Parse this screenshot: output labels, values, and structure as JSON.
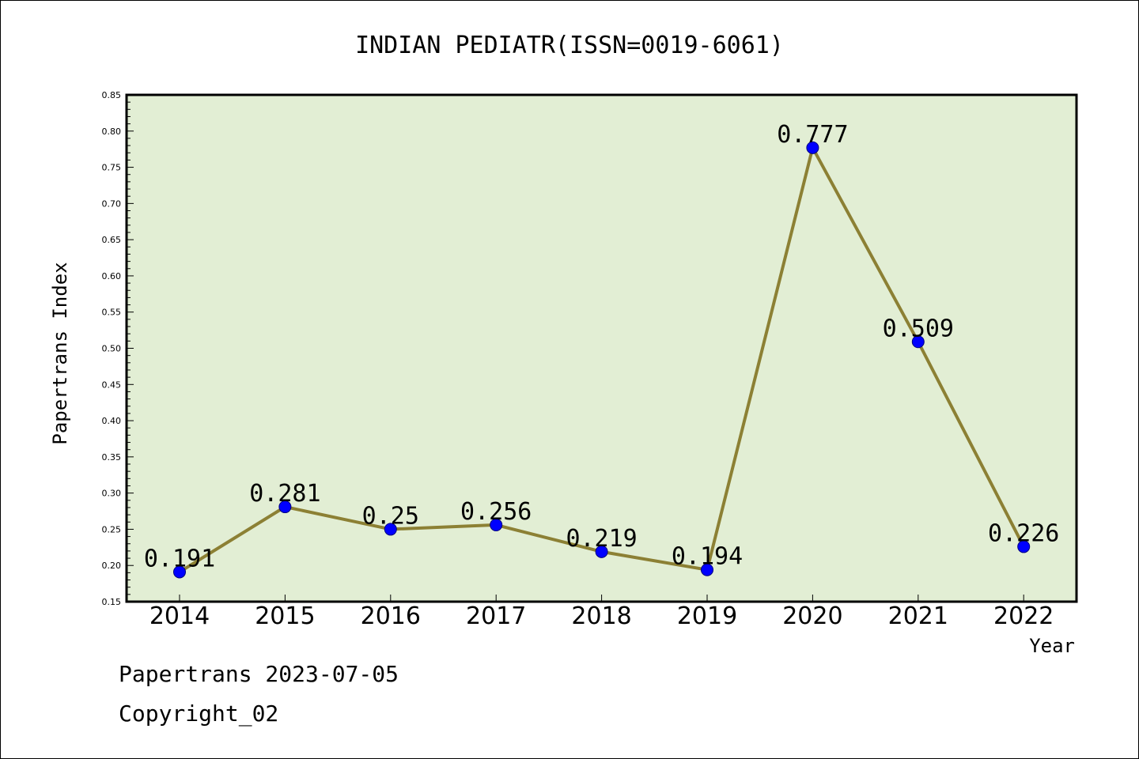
{
  "chart_data": {
    "type": "line",
    "title": "INDIAN PEDIATR(ISSN=0019-6061)",
    "xlabel": "Year",
    "ylabel": "Papertrans Index",
    "categories": [
      "2014",
      "2015",
      "2016",
      "2017",
      "2018",
      "2019",
      "2020",
      "2021",
      "2022"
    ],
    "values": [
      0.191,
      0.281,
      0.25,
      0.256,
      0.219,
      0.194,
      0.777,
      0.509,
      0.226
    ],
    "data_labels": [
      "0.191",
      "0.281",
      "0.25",
      "0.256",
      "0.219",
      "0.194",
      "0.777",
      "0.509",
      "0.226"
    ],
    "ylim": [
      0.15,
      0.85
    ],
    "yticks": [
      "0.15",
      "0.20",
      "0.25",
      "0.30",
      "0.35",
      "0.40",
      "0.45",
      "0.50",
      "0.55",
      "0.60",
      "0.65",
      "0.70",
      "0.75",
      "0.80",
      "0.85"
    ],
    "grid": false,
    "colors": {
      "plot_background": "#e2eed4",
      "line": "#8c8034",
      "marker": "#0000ff",
      "marker_edge": "#000080"
    }
  },
  "footer": {
    "line1": "Papertrans 2023-07-05",
    "line2": "Copyright_02"
  }
}
